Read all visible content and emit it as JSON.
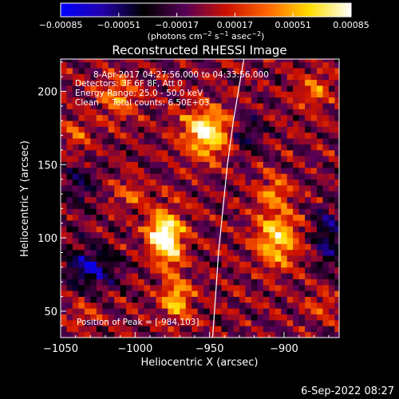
{
  "chart_data": {
    "type": "heatmap",
    "title": "Reconstructed RHESSI Image",
    "xlabel": "Heliocentric X (arcsec)",
    "ylabel": "Heliocentric Y (arcsec)",
    "xlim": [
      -1050,
      -863
    ],
    "ylim": [
      32,
      222
    ],
    "x_ticks": [
      {
        "value": -1050,
        "label": "−1050"
      },
      {
        "value": -1000,
        "label": "−1000"
      },
      {
        "value": -950,
        "label": "−950"
      },
      {
        "value": -900,
        "label": "−900"
      }
    ],
    "y_ticks": [
      {
        "value": 50,
        "label": "50"
      },
      {
        "value": 100,
        "label": "100"
      },
      {
        "value": 150,
        "label": "150"
      },
      {
        "value": 200,
        "label": "200"
      }
    ],
    "colorbar": {
      "min": -0.00085,
      "max": 0.00085,
      "ticks": [
        {
          "value": -0.00085,
          "label": "−0.00085"
        },
        {
          "value": -0.00051,
          "label": "−0.00051"
        },
        {
          "value": -0.00017,
          "label": "−0.00017"
        },
        {
          "value": 0.00017,
          "label": "0.00017"
        },
        {
          "value": 0.00051,
          "label": "0.00051"
        },
        {
          "value": 0.00085,
          "label": "0.00085"
        }
      ],
      "units_prefix": "(photons cm",
      "units_sup1": "−2",
      "units_mid": " s",
      "units_sup2": "−1",
      "units_mid2": " asec",
      "units_sup3": "−2",
      "units_suffix": ")",
      "colors": [
        "#0000ff",
        "#2200aa",
        "#000000",
        "#550055",
        "#cc1100",
        "#ff6600",
        "#ffdd00",
        "#ffffff"
      ]
    },
    "annotations": {
      "time_range": "8-Apr-2017 04:27:56.000 to 04:33:56.000",
      "detectors": "Detectors: 3F 6F 8F, Att 0",
      "energy": "Energy Range: 25.0 - 50.0 keV",
      "clean": "Clean     Total counts: 6.50E+03",
      "peak": "Position of Peak = [-984,103]"
    },
    "sources": [
      {
        "x": -952,
        "y": 172,
        "peak": 0.00085,
        "sx": 11,
        "sy": 12
      },
      {
        "x": -977,
        "y": 98,
        "peak": 0.00072,
        "sx": 7,
        "sy": 15
      },
      {
        "x": -984,
        "y": 103,
        "peak": 0.0006,
        "sx": 6,
        "sy": 9
      },
      {
        "x": -972,
        "y": 58,
        "peak": 0.00058,
        "sx": 7,
        "sy": 10
      },
      {
        "x": -905,
        "y": 100,
        "peak": 0.00068,
        "sx": 10,
        "sy": 14
      },
      {
        "x": -908,
        "y": 133,
        "peak": 0.0004,
        "sx": 8,
        "sy": 8
      },
      {
        "x": -1012,
        "y": 197,
        "peak": 0.00045,
        "sx": 9,
        "sy": 10
      },
      {
        "x": -1040,
        "y": 170,
        "peak": 0.0003,
        "sx": 6,
        "sy": 8
      },
      {
        "x": -1005,
        "y": 130,
        "peak": 0.0003,
        "sx": 9,
        "sy": 7
      },
      {
        "x": -880,
        "y": 200,
        "peak": 0.00035,
        "sx": 8,
        "sy": 9
      },
      {
        "x": -875,
        "y": 55,
        "peak": 0.00025,
        "sx": 8,
        "sy": 8
      },
      {
        "x": -1035,
        "y": 48,
        "peak": 0.0002,
        "sx": 7,
        "sy": 7
      },
      {
        "x": -1030,
        "y": 80,
        "peak": -0.00055,
        "sx": 12,
        "sy": 10
      },
      {
        "x": -870,
        "y": 100,
        "peak": -0.00045,
        "sx": 7,
        "sy": 16
      },
      {
        "x": -1038,
        "y": 135,
        "peak": -0.0003,
        "sx": 8,
        "sy": 12
      },
      {
        "x": -925,
        "y": 170,
        "peak": -0.00028,
        "sx": 8,
        "sy": 10
      }
    ],
    "limb_curve": [
      {
        "x": -948,
        "y": 32
      },
      {
        "x": -946,
        "y": 60
      },
      {
        "x": -944,
        "y": 90
      },
      {
        "x": -941,
        "y": 120
      },
      {
        "x": -938,
        "y": 150
      },
      {
        "x": -934,
        "y": 180
      },
      {
        "x": -929,
        "y": 210
      },
      {
        "x": -927,
        "y": 222
      }
    ]
  },
  "footer": {
    "date": "6-Sep-2022 08:27"
  }
}
